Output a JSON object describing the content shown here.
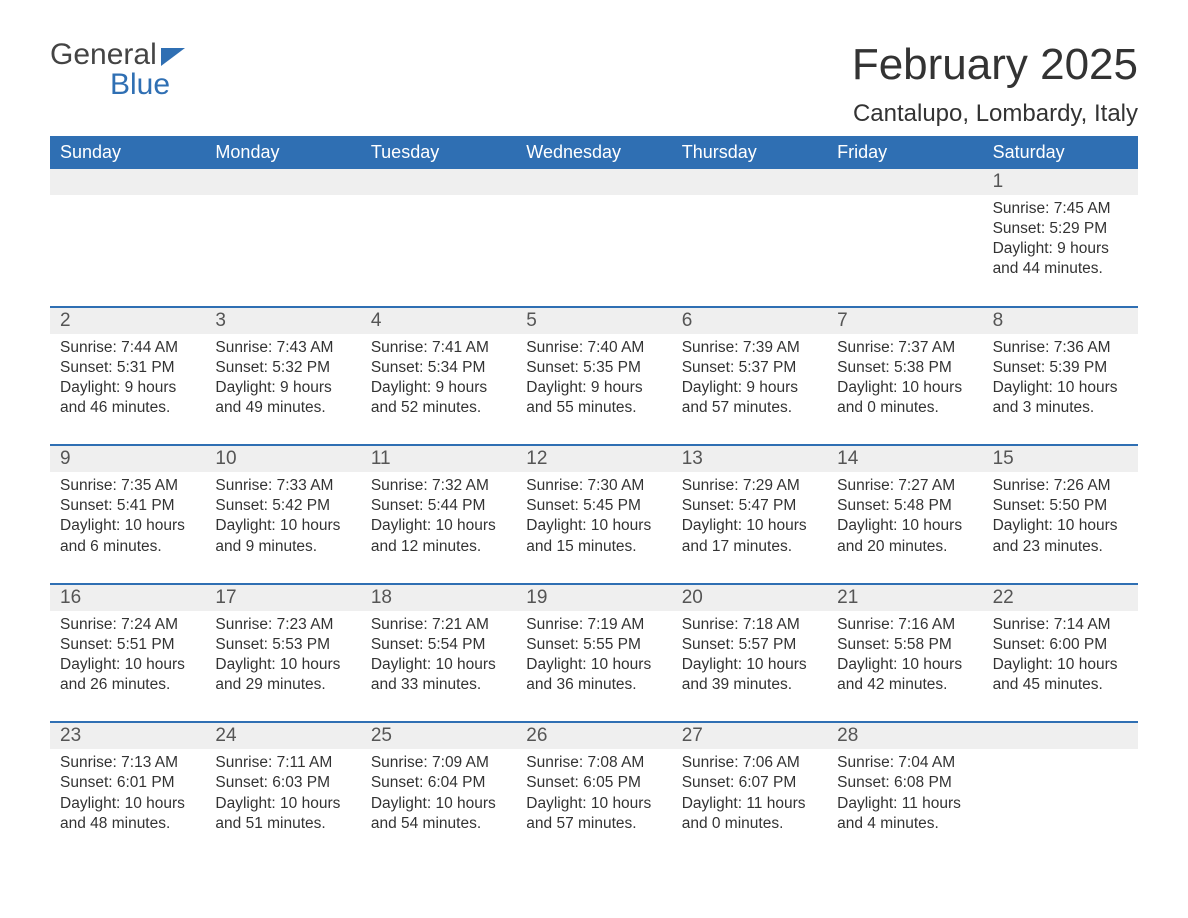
{
  "logo": {
    "text_top": "General",
    "text_bottom": "Blue"
  },
  "title": "February 2025",
  "location": "Cantalupo, Lombardy, Italy",
  "colors": {
    "header_bg": "#2f6fb3",
    "header_text": "#ffffff",
    "daynum_bg": "#efefef",
    "week_border": "#2f6fb3",
    "body_text": "#333333",
    "background": "#ffffff"
  },
  "layout": {
    "columns": 7,
    "rows": 5,
    "first_day_column_index": 6
  },
  "days_of_week": [
    "Sunday",
    "Monday",
    "Tuesday",
    "Wednesday",
    "Thursday",
    "Friday",
    "Saturday"
  ],
  "weeks": [
    [
      null,
      null,
      null,
      null,
      null,
      null,
      {
        "num": "1",
        "sunrise": "Sunrise: 7:45 AM",
        "sunset": "Sunset: 5:29 PM",
        "daylight": "Daylight: 9 hours and 44 minutes."
      }
    ],
    [
      {
        "num": "2",
        "sunrise": "Sunrise: 7:44 AM",
        "sunset": "Sunset: 5:31 PM",
        "daylight": "Daylight: 9 hours and 46 minutes."
      },
      {
        "num": "3",
        "sunrise": "Sunrise: 7:43 AM",
        "sunset": "Sunset: 5:32 PM",
        "daylight": "Daylight: 9 hours and 49 minutes."
      },
      {
        "num": "4",
        "sunrise": "Sunrise: 7:41 AM",
        "sunset": "Sunset: 5:34 PM",
        "daylight": "Daylight: 9 hours and 52 minutes."
      },
      {
        "num": "5",
        "sunrise": "Sunrise: 7:40 AM",
        "sunset": "Sunset: 5:35 PM",
        "daylight": "Daylight: 9 hours and 55 minutes."
      },
      {
        "num": "6",
        "sunrise": "Sunrise: 7:39 AM",
        "sunset": "Sunset: 5:37 PM",
        "daylight": "Daylight: 9 hours and 57 minutes."
      },
      {
        "num": "7",
        "sunrise": "Sunrise: 7:37 AM",
        "sunset": "Sunset: 5:38 PM",
        "daylight": "Daylight: 10 hours and 0 minutes."
      },
      {
        "num": "8",
        "sunrise": "Sunrise: 7:36 AM",
        "sunset": "Sunset: 5:39 PM",
        "daylight": "Daylight: 10 hours and 3 minutes."
      }
    ],
    [
      {
        "num": "9",
        "sunrise": "Sunrise: 7:35 AM",
        "sunset": "Sunset: 5:41 PM",
        "daylight": "Daylight: 10 hours and 6 minutes."
      },
      {
        "num": "10",
        "sunrise": "Sunrise: 7:33 AM",
        "sunset": "Sunset: 5:42 PM",
        "daylight": "Daylight: 10 hours and 9 minutes."
      },
      {
        "num": "11",
        "sunrise": "Sunrise: 7:32 AM",
        "sunset": "Sunset: 5:44 PM",
        "daylight": "Daylight: 10 hours and 12 minutes."
      },
      {
        "num": "12",
        "sunrise": "Sunrise: 7:30 AM",
        "sunset": "Sunset: 5:45 PM",
        "daylight": "Daylight: 10 hours and 15 minutes."
      },
      {
        "num": "13",
        "sunrise": "Sunrise: 7:29 AM",
        "sunset": "Sunset: 5:47 PM",
        "daylight": "Daylight: 10 hours and 17 minutes."
      },
      {
        "num": "14",
        "sunrise": "Sunrise: 7:27 AM",
        "sunset": "Sunset: 5:48 PM",
        "daylight": "Daylight: 10 hours and 20 minutes."
      },
      {
        "num": "15",
        "sunrise": "Sunrise: 7:26 AM",
        "sunset": "Sunset: 5:50 PM",
        "daylight": "Daylight: 10 hours and 23 minutes."
      }
    ],
    [
      {
        "num": "16",
        "sunrise": "Sunrise: 7:24 AM",
        "sunset": "Sunset: 5:51 PM",
        "daylight": "Daylight: 10 hours and 26 minutes."
      },
      {
        "num": "17",
        "sunrise": "Sunrise: 7:23 AM",
        "sunset": "Sunset: 5:53 PM",
        "daylight": "Daylight: 10 hours and 29 minutes."
      },
      {
        "num": "18",
        "sunrise": "Sunrise: 7:21 AM",
        "sunset": "Sunset: 5:54 PM",
        "daylight": "Daylight: 10 hours and 33 minutes."
      },
      {
        "num": "19",
        "sunrise": "Sunrise: 7:19 AM",
        "sunset": "Sunset: 5:55 PM",
        "daylight": "Daylight: 10 hours and 36 minutes."
      },
      {
        "num": "20",
        "sunrise": "Sunrise: 7:18 AM",
        "sunset": "Sunset: 5:57 PM",
        "daylight": "Daylight: 10 hours and 39 minutes."
      },
      {
        "num": "21",
        "sunrise": "Sunrise: 7:16 AM",
        "sunset": "Sunset: 5:58 PM",
        "daylight": "Daylight: 10 hours and 42 minutes."
      },
      {
        "num": "22",
        "sunrise": "Sunrise: 7:14 AM",
        "sunset": "Sunset: 6:00 PM",
        "daylight": "Daylight: 10 hours and 45 minutes."
      }
    ],
    [
      {
        "num": "23",
        "sunrise": "Sunrise: 7:13 AM",
        "sunset": "Sunset: 6:01 PM",
        "daylight": "Daylight: 10 hours and 48 minutes."
      },
      {
        "num": "24",
        "sunrise": "Sunrise: 7:11 AM",
        "sunset": "Sunset: 6:03 PM",
        "daylight": "Daylight: 10 hours and 51 minutes."
      },
      {
        "num": "25",
        "sunrise": "Sunrise: 7:09 AM",
        "sunset": "Sunset: 6:04 PM",
        "daylight": "Daylight: 10 hours and 54 minutes."
      },
      {
        "num": "26",
        "sunrise": "Sunrise: 7:08 AM",
        "sunset": "Sunset: 6:05 PM",
        "daylight": "Daylight: 10 hours and 57 minutes."
      },
      {
        "num": "27",
        "sunrise": "Sunrise: 7:06 AM",
        "sunset": "Sunset: 6:07 PM",
        "daylight": "Daylight: 11 hours and 0 minutes."
      },
      {
        "num": "28",
        "sunrise": "Sunrise: 7:04 AM",
        "sunset": "Sunset: 6:08 PM",
        "daylight": "Daylight: 11 hours and 4 minutes."
      },
      null
    ]
  ]
}
